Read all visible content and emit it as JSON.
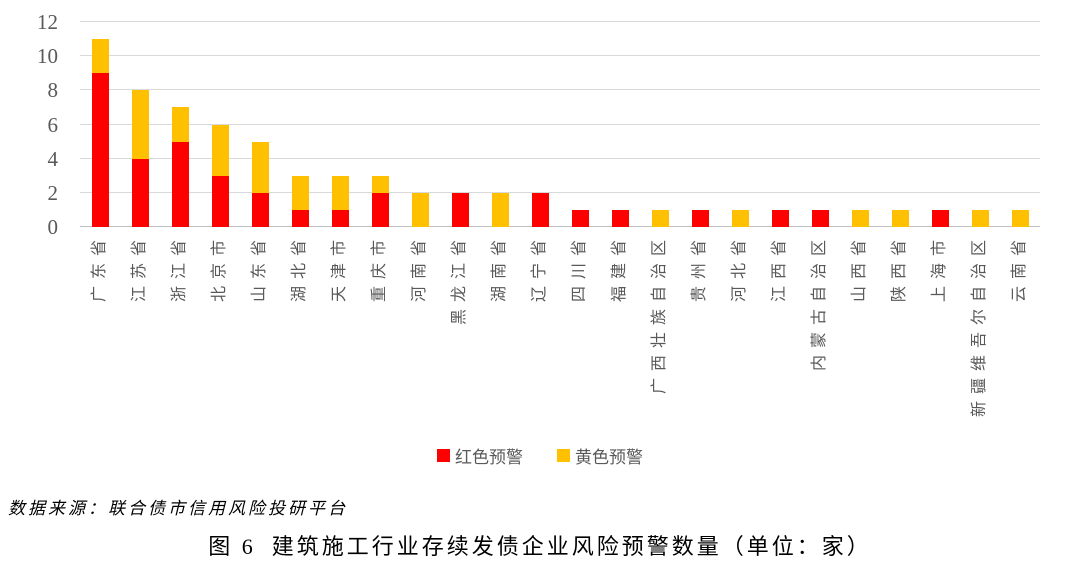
{
  "figure": {
    "source_note": "数据来源：联合债市信用风险投研平台",
    "caption": {
      "prefix": "图 6",
      "title": "建筑施工行业存续发债企业风险预警数量（单位：家）"
    }
  },
  "chart_data": {
    "type": "bar",
    "stacked": true,
    "title": "建筑施工行业存续发债企业风险预警数量（单位：家）",
    "xlabel": "",
    "ylabel": "",
    "categories": [
      "广东省",
      "江苏省",
      "浙江省",
      "北京市",
      "山东省",
      "湖北省",
      "天津市",
      "重庆市",
      "河南省",
      "黑龙江省",
      "湖南省",
      "辽宁省",
      "四川省",
      "福建省",
      "广西壮族自治区",
      "贵州省",
      "河北省",
      "江西省",
      "内蒙古自治区",
      "山西省",
      "陕西省",
      "上海市",
      "新疆维吾尔自治区",
      "云南省"
    ],
    "series": [
      {
        "name": "红色预警",
        "color": "#FF0000",
        "values": [
          9,
          4,
          5,
          3,
          2,
          1,
          1,
          2,
          0,
          2,
          0,
          2,
          1,
          1,
          0,
          1,
          0,
          1,
          1,
          0,
          0,
          1,
          0,
          0
        ]
      },
      {
        "name": "黄色预警",
        "color": "#FFC000",
        "values": [
          2,
          4,
          2,
          3,
          3,
          2,
          2,
          1,
          2,
          0,
          2,
          0,
          0,
          0,
          1,
          0,
          1,
          0,
          0,
          1,
          1,
          0,
          1,
          1
        ]
      }
    ],
    "totals": [
      11,
      8,
      7,
      6,
      5,
      3,
      3,
      3,
      2,
      2,
      2,
      2,
      1,
      1,
      1,
      1,
      1,
      1,
      1,
      1,
      1,
      1,
      1,
      1
    ],
    "ylim": [
      0,
      12
    ],
    "yticks": [
      0,
      2,
      4,
      6,
      8,
      10,
      12
    ],
    "grid": true,
    "legend_position": "bottom",
    "colors": {
      "grid": "#D9D9D9",
      "axis_line": "#BFBFBF",
      "axis_text": "#595959",
      "category_text": "#595959",
      "legend_text": "#595959"
    }
  }
}
